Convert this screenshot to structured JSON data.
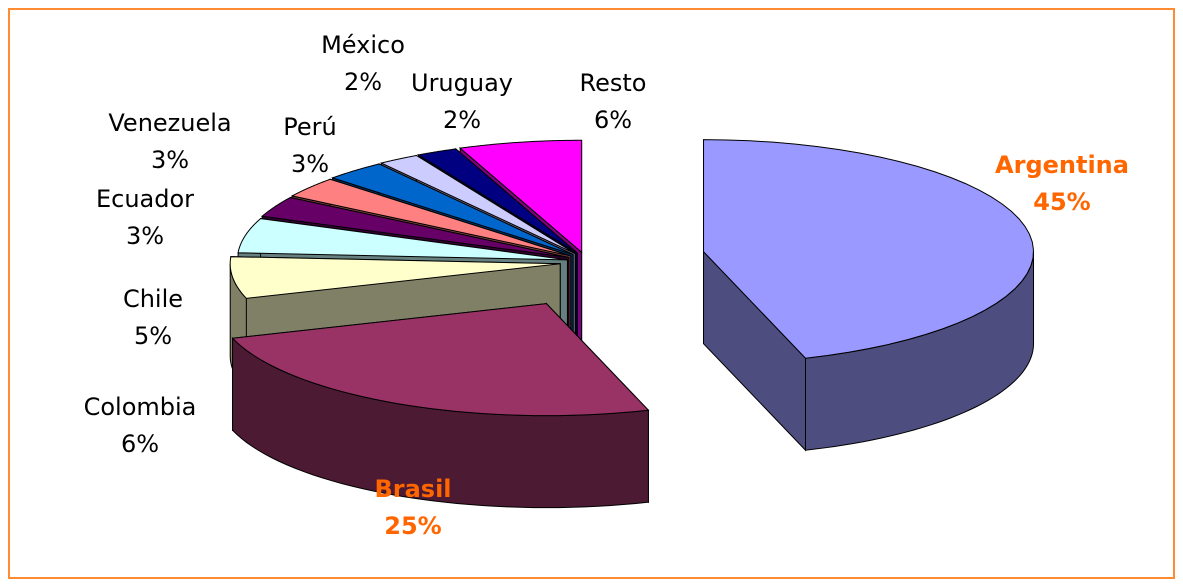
{
  "chart_data": {
    "type": "pie",
    "categories": [
      "Argentina",
      "Brasil",
      "Colombia",
      "Chile",
      "Ecuador",
      "Venezuela",
      "Perú",
      "México",
      "Uruguay",
      "Resto"
    ],
    "values": [
      45,
      25,
      6,
      5,
      3,
      3,
      3,
      2,
      2,
      6
    ],
    "value_labels": [
      "45%",
      "25%",
      "6%",
      "5%",
      "3%",
      "3%",
      "3%",
      "2%",
      "2%",
      "6%"
    ],
    "colors": [
      "#9999ff",
      "#993366",
      "#ffffcc",
      "#ccffff",
      "#660066",
      "#ff8080",
      "#0066cc",
      "#ccccff",
      "#000080",
      "#ff00ff"
    ]
  }
}
